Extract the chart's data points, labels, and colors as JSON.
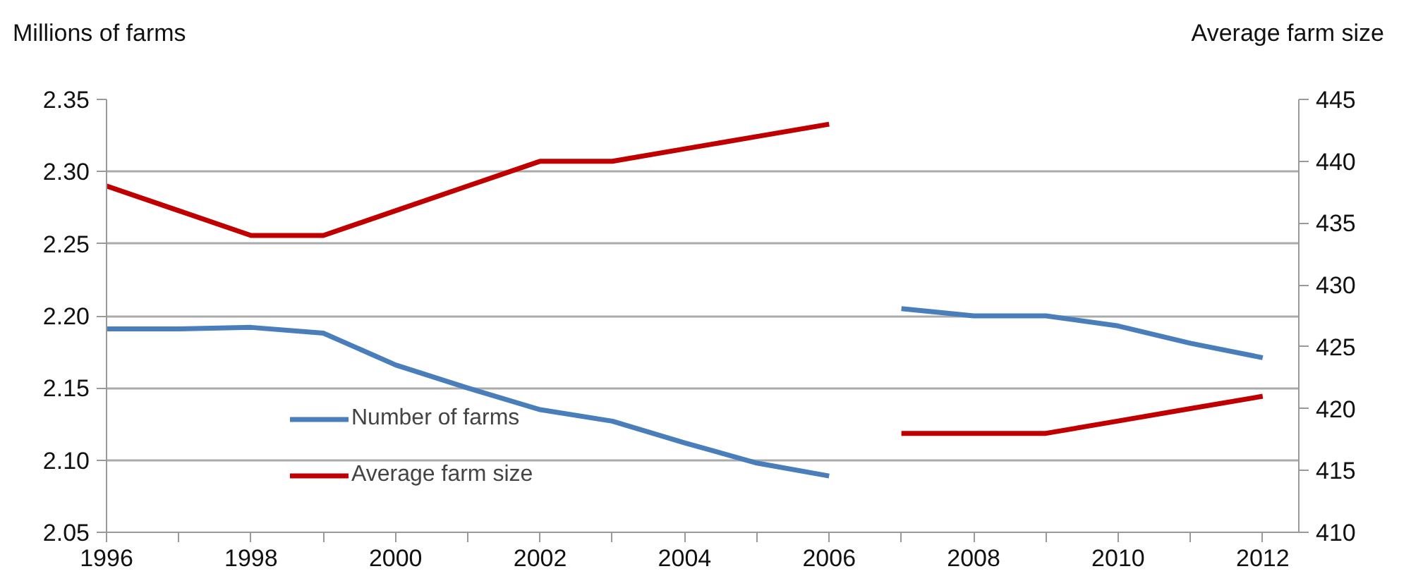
{
  "chart_data": {
    "type": "line",
    "x": [
      1996,
      1997,
      1998,
      1999,
      2000,
      2001,
      2002,
      2003,
      2004,
      2005,
      2006,
      null,
      2007,
      2008,
      2009,
      2010,
      2011,
      2012
    ],
    "series": [
      {
        "name": "Number of farms",
        "color": "#4a7ebb",
        "values": [
          2.191,
          2.191,
          2.192,
          2.188,
          2.166,
          2.15,
          2.135,
          2.127,
          2.112,
          2.098,
          2.089,
          null,
          2.205,
          2.2,
          2.2,
          2.193,
          2.181,
          2.171
        ]
      },
      {
        "name": "Average farm size",
        "color": "#c00000",
        "axis": "y2",
        "values": [
          438,
          436,
          434,
          434,
          436,
          438,
          440,
          440,
          441,
          442,
          443,
          null,
          418,
          418,
          418,
          419,
          420,
          421
        ]
      }
    ],
    "ylabel": "Millions of farms",
    "y2label": "Average farm size",
    "xlim": [
      1996,
      2012.5
    ],
    "xticks": [
      1996,
      {
        "value": 1997,
        "label": null
      },
      1998,
      {
        "value": 1999,
        "label": null
      },
      2000,
      {
        "value": 2001,
        "label": null
      },
      2002,
      {
        "value": 2003,
        "label": null
      },
      2004,
      {
        "value": 2005,
        "label": null
      },
      2006,
      {
        "value": 2007,
        "label": null
      },
      2008,
      {
        "value": 2009,
        "label": null
      },
      2010,
      {
        "value": 2011,
        "label": null
      },
      2012
    ],
    "ylim": [
      2.05,
      2.35
    ],
    "yticks": [
      2.05,
      {
        "value": 2.1,
        "label": "2.10"
      },
      2.15,
      {
        "value": 2.2,
        "label": "2.20"
      },
      2.25,
      {
        "value": 2.3,
        "label": "2.30"
      },
      2.35
    ],
    "y2lim": [
      410,
      445
    ],
    "y2ticks": [
      410,
      415,
      420,
      425,
      430,
      435,
      440,
      445
    ],
    "grid": "y",
    "legend": "bottom left",
    "marker": "none",
    "line_style": "solid"
  }
}
